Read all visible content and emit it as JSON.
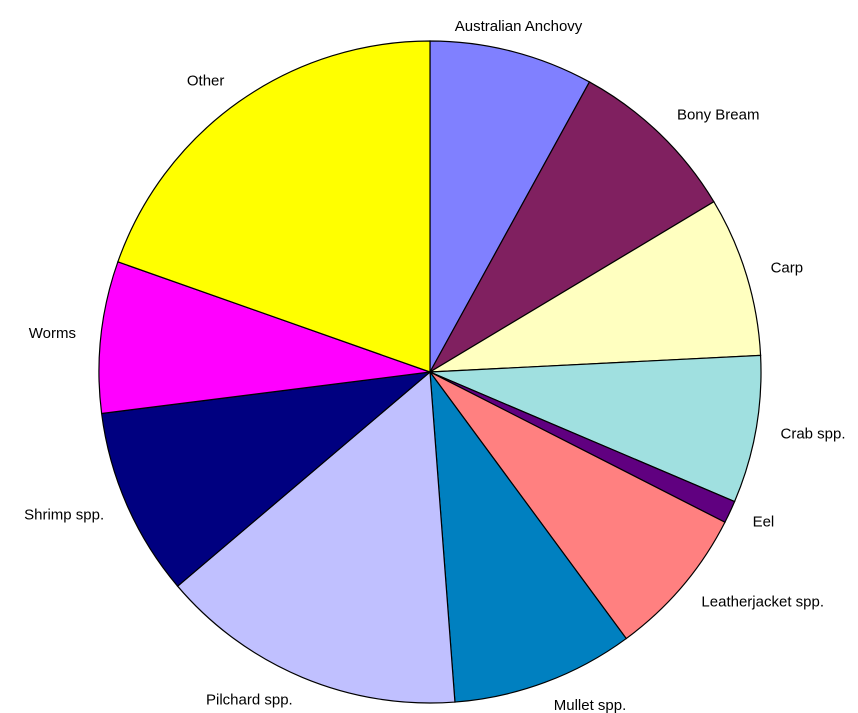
{
  "chart_data": {
    "type": "pie",
    "categories": [
      "Australian Anchovy",
      "Bony Bream",
      "Carp",
      "Crab spp.",
      "Eel",
      "Leatherjacket spp.",
      "Mullet spp.",
      "Pilchard spp.",
      "Shrimp spp.",
      "Worms",
      "Other"
    ],
    "values": [
      8.0,
      8.4,
      7.8,
      7.2,
      1.1,
      7.4,
      8.9,
      15.0,
      9.2,
      7.4,
      19.6
    ],
    "colors": [
      "#8080ff",
      "#802060",
      "#ffffc0",
      "#a0e0e0",
      "#600080",
      "#ff8080",
      "#0080c0",
      "#c0c0ff",
      "#000080",
      "#ff00ff",
      "#ffff00"
    ]
  }
}
